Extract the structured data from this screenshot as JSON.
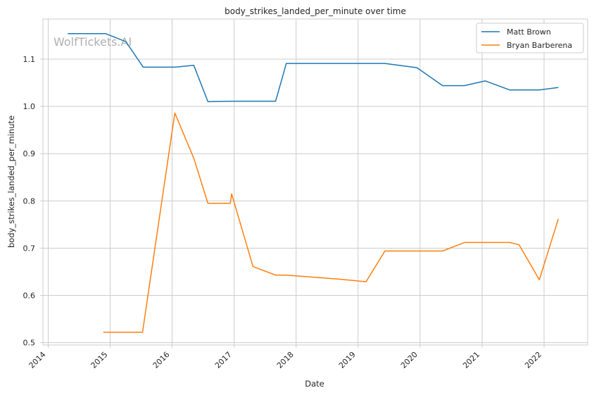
{
  "chart_data": {
    "type": "line",
    "title": "body_strikes_landed_per_minute over time",
    "xlabel": "Date",
    "ylabel": "body_strikes_landed_per_minute",
    "watermark": "WolfTickets.AI",
    "xlim": [
      "2013-12-01",
      "2022-09-15"
    ],
    "ylim": [
      0.495,
      1.185
    ],
    "x_ticks": [
      "2014",
      "2015",
      "2016",
      "2017",
      "2018",
      "2019",
      "2020",
      "2021",
      "2022"
    ],
    "y_ticks": [
      "0.5",
      "0.6",
      "0.7",
      "0.8",
      "0.9",
      "1.0",
      "1.1"
    ],
    "grid": true,
    "legend_position": "top-right",
    "series": [
      {
        "name": "Matt Brown",
        "color": "#1f77b4",
        "points": [
          [
            "2014-04-26",
            1.154
          ],
          [
            "2014-12-06",
            1.154
          ],
          [
            "2015-04-04",
            1.137
          ],
          [
            "2015-07-15",
            1.083
          ],
          [
            "2016-01-17",
            1.083
          ],
          [
            "2016-05-08",
            1.087
          ],
          [
            "2016-07-30",
            1.01
          ],
          [
            "2016-12-30",
            1.011
          ],
          [
            "2017-09-02",
            1.011
          ],
          [
            "2017-11-04",
            1.091
          ],
          [
            "2019-06-08",
            1.091
          ],
          [
            "2019-12-14",
            1.082
          ],
          [
            "2020-05-13",
            1.044
          ],
          [
            "2020-09-19",
            1.044
          ],
          [
            "2021-01-20",
            1.054
          ],
          [
            "2021-06-12",
            1.035
          ],
          [
            "2021-12-04",
            1.035
          ],
          [
            "2022-03-26",
            1.04
          ]
        ]
      },
      {
        "name": "Bryan Barberena",
        "color": "#ff7f0e",
        "points": [
          [
            "2014-11-22",
            0.522
          ],
          [
            "2015-07-11",
            0.522
          ],
          [
            "2016-01-17",
            0.986
          ],
          [
            "2016-05-08",
            0.89
          ],
          [
            "2016-07-30",
            0.795
          ],
          [
            "2016-12-09",
            0.795
          ],
          [
            "2016-12-17",
            0.815
          ],
          [
            "2017-04-22",
            0.661
          ],
          [
            "2017-09-02",
            0.643
          ],
          [
            "2017-11-04",
            0.643
          ],
          [
            "2018-08-25",
            0.635
          ],
          [
            "2019-02-17",
            0.629
          ],
          [
            "2019-06-08",
            0.694
          ],
          [
            "2020-05-13",
            0.694
          ],
          [
            "2020-09-19",
            0.712
          ],
          [
            "2021-06-12",
            0.712
          ],
          [
            "2021-08-07",
            0.707
          ],
          [
            "2021-12-04",
            0.633
          ],
          [
            "2022-03-26",
            0.762
          ]
        ]
      }
    ]
  }
}
